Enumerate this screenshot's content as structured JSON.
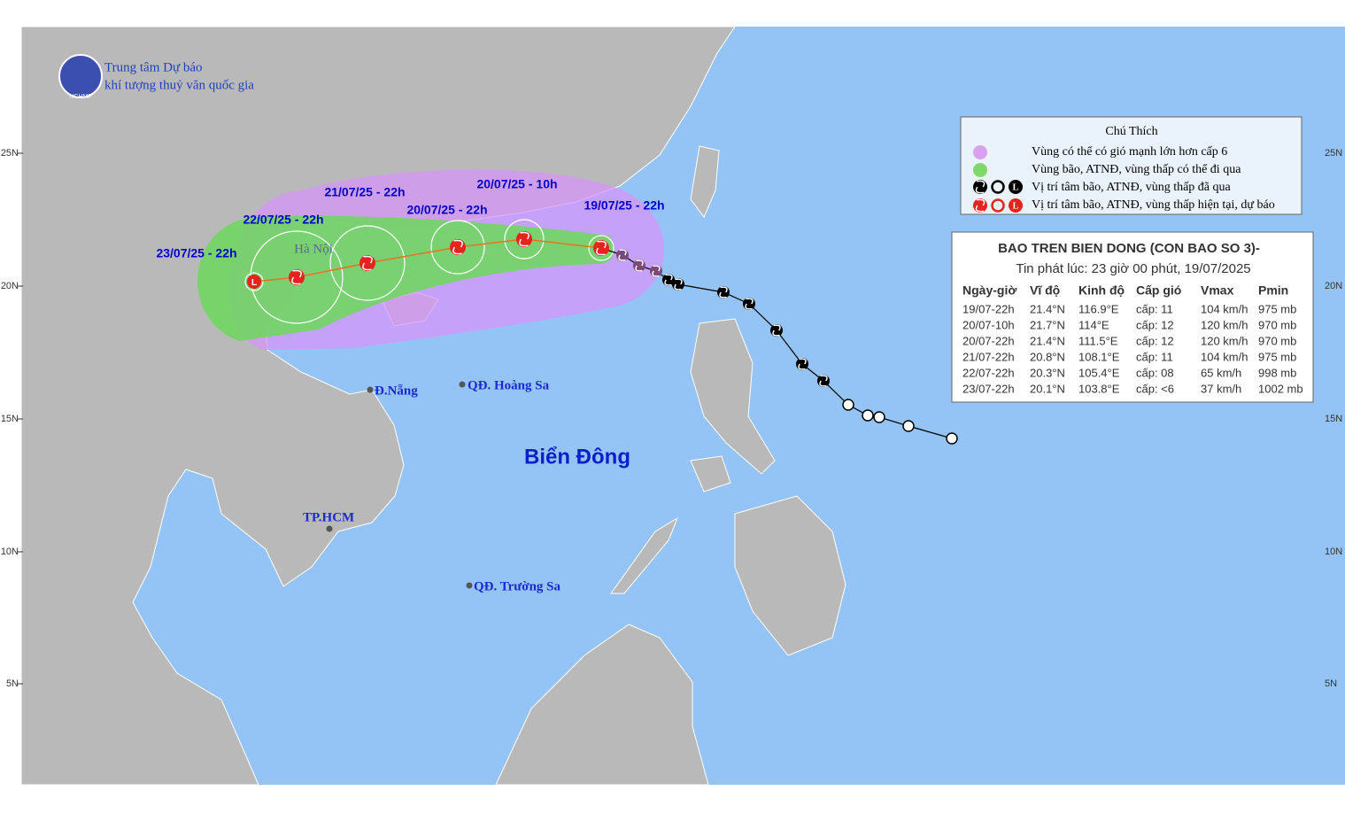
{
  "header": {
    "org_line1": "Trung tâm Dự báo",
    "org_line2": "khí tượng thuỷ văn quốc gia",
    "logo": "NCHMF"
  },
  "legend": {
    "title": "Chú Thích",
    "items": [
      "Vùng có thể có gió mạnh lớn hơn cấp 6",
      "Vùng bão, ATNĐ, vùng thấp có thể đi qua",
      "Vị trí tâm bão, ATNĐ, vùng thấp đã qua",
      "Vị trí tâm bão, ATNĐ, vùng thấp hiện tại, dự báo"
    ]
  },
  "bulletin": {
    "title": "BAO TREN BIEN DONG (CON BAO SO 3)-",
    "issued": "Tin phát lúc: 23 giờ 00 phút, 19/07/2025",
    "columns": [
      "Ngày-giờ",
      "Vĩ độ",
      "Kinh độ",
      "Cấp gió",
      "Vmax",
      "Pmin"
    ],
    "rows": [
      [
        "19/07-22h",
        "21.4°N",
        "116.9°E",
        "cấp: 11",
        "104 km/h",
        "975 mb"
      ],
      [
        "20/07-10h",
        "21.7°N",
        "114°E",
        "cấp: 12",
        "120 km/h",
        "970 mb"
      ],
      [
        "20/07-22h",
        "21.4°N",
        "111.5°E",
        "cấp: 12",
        "120 km/h",
        "970 mb"
      ],
      [
        "21/07-22h",
        "20.8°N",
        "108.1°E",
        "cấp: 11",
        "104 km/h",
        "975 mb"
      ],
      [
        "22/07-22h",
        "20.3°N",
        "105.4°E",
        "cấp: 08",
        "65 km/h",
        "998 mb"
      ],
      [
        "23/07-22h",
        "20.1°N",
        "103.8°E",
        "cấp: <6",
        "37 km/h",
        "1002 mb"
      ]
    ]
  },
  "map": {
    "sea": "Biển Đông",
    "places": [
      "Hà Nội",
      "Đ.Nẵng",
      "QĐ. Hoàng Sa",
      "TP.HCM",
      "QĐ. Trường Sa"
    ],
    "track_labels": [
      "19/07/25 - 22h",
      "20/07/25 - 10h",
      "20/07/25 - 22h",
      "21/07/25 - 22h",
      "22/07/25 - 22h",
      "23/07/25 - 22h"
    ],
    "low_symbol": "L",
    "lat_labels": [
      "25N",
      "20N",
      "15N",
      "10N",
      "5N"
    ]
  }
}
